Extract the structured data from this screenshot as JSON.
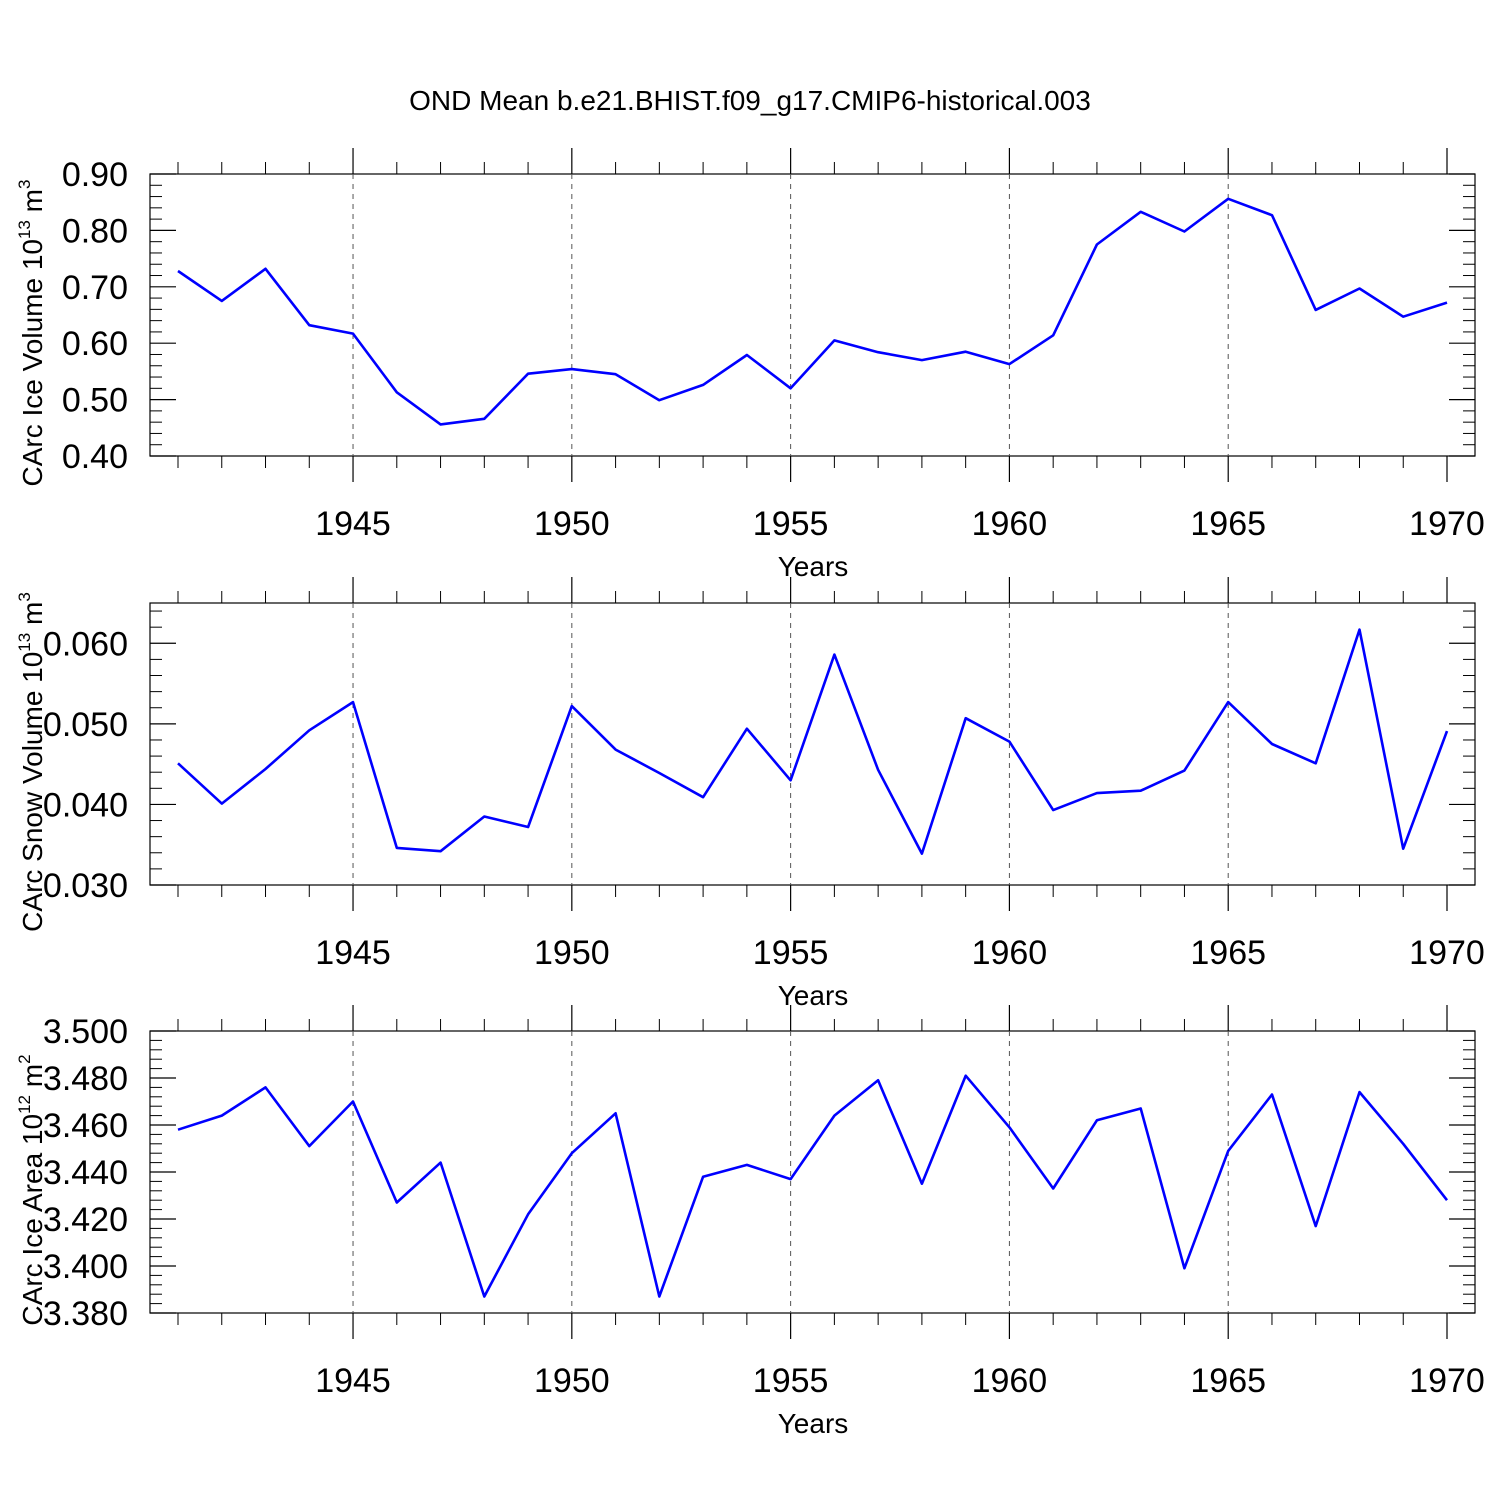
{
  "figure_title": "OND Mean b.e21.BHIST.f09_g17.CMIP6-historical.003",
  "colors": {
    "line": "#0000ff",
    "axes": "#000000",
    "grid": "#555555"
  },
  "chart_data": [
    {
      "type": "line",
      "ylabel_text": "CArc Ice Volume 10",
      "ylabel_exp": "13",
      "ylabel_unit": " m",
      "ylabel_unit_exp": "3",
      "xlabel": "Years",
      "xlim": [
        1941,
        1970
      ],
      "ylim": [
        0.4,
        0.9
      ],
      "y_ticks": [
        "0.40",
        "0.50",
        "0.60",
        "0.70",
        "0.80",
        "0.90"
      ],
      "y_tick_values": [
        0.4,
        0.5,
        0.6,
        0.7,
        0.8,
        0.9
      ],
      "y_minor_step": 0.02,
      "x_ticks": [
        "1945",
        "1950",
        "1955",
        "1960",
        "1965",
        "1970"
      ],
      "x_tick_values": [
        1945,
        1950,
        1955,
        1960,
        1965,
        1970
      ],
      "x": [
        1941,
        1942,
        1943,
        1944,
        1945,
        1946,
        1947,
        1948,
        1949,
        1950,
        1951,
        1952,
        1953,
        1954,
        1955,
        1956,
        1957,
        1958,
        1959,
        1960,
        1961,
        1962,
        1963,
        1964,
        1965,
        1966,
        1967,
        1968,
        1969,
        1970
      ],
      "values": [
        0.728,
        0.675,
        0.732,
        0.632,
        0.617,
        0.513,
        0.456,
        0.466,
        0.546,
        0.554,
        0.545,
        0.499,
        0.526,
        0.579,
        0.52,
        0.605,
        0.584,
        0.57,
        0.585,
        0.563,
        0.614,
        0.775,
        0.833,
        0.798,
        0.856,
        0.827,
        0.659,
        0.697,
        0.647,
        0.672
      ]
    },
    {
      "type": "line",
      "ylabel_text": "CArc Snow Volume 10",
      "ylabel_exp": "13",
      "ylabel_unit": " m",
      "ylabel_unit_exp": "3",
      "xlabel": "Years",
      "xlim": [
        1941,
        1970
      ],
      "ylim": [
        0.03,
        0.065
      ],
      "y_ticks": [
        "0.030",
        "0.040",
        "0.050",
        "0.060"
      ],
      "y_tick_values": [
        0.03,
        0.04,
        0.05,
        0.06
      ],
      "y_minor_step": 0.002,
      "x_ticks": [
        "1945",
        "1950",
        "1955",
        "1960",
        "1965",
        "1970"
      ],
      "x_tick_values": [
        1945,
        1950,
        1955,
        1960,
        1965,
        1970
      ],
      "x": [
        1941,
        1942,
        1943,
        1944,
        1945,
        1946,
        1947,
        1948,
        1949,
        1950,
        1951,
        1952,
        1953,
        1954,
        1955,
        1956,
        1957,
        1958,
        1959,
        1960,
        1961,
        1962,
        1963,
        1964,
        1965,
        1966,
        1967,
        1968,
        1969,
        1970
      ],
      "values": [
        0.0451,
        0.0401,
        0.0444,
        0.0492,
        0.0527,
        0.0346,
        0.0342,
        0.0385,
        0.0372,
        0.0522,
        0.0468,
        0.0439,
        0.0409,
        0.0494,
        0.043,
        0.0586,
        0.0443,
        0.0339,
        0.0507,
        0.0478,
        0.0393,
        0.0414,
        0.0417,
        0.0442,
        0.0527,
        0.0475,
        0.0451,
        0.0617,
        0.0345,
        0.0491
      ]
    },
    {
      "type": "line",
      "ylabel_text": "CArc Ice Area 10",
      "ylabel_exp": "12",
      "ylabel_unit": " m",
      "ylabel_unit_exp": "2",
      "xlabel": "Years",
      "xlim": [
        1941,
        1970
      ],
      "ylim": [
        3.38,
        3.5
      ],
      "y_ticks": [
        "3.380",
        "3.400",
        "3.420",
        "3.440",
        "3.460",
        "3.480",
        "3.500"
      ],
      "y_tick_values": [
        3.38,
        3.4,
        3.42,
        3.44,
        3.46,
        3.48,
        3.5
      ],
      "y_minor_step": 0.004,
      "x_ticks": [
        "1945",
        "1950",
        "1955",
        "1960",
        "1965",
        "1970"
      ],
      "x_tick_values": [
        1945,
        1950,
        1955,
        1960,
        1965,
        1970
      ],
      "x": [
        1941,
        1942,
        1943,
        1944,
        1945,
        1946,
        1947,
        1948,
        1949,
        1950,
        1951,
        1952,
        1953,
        1954,
        1955,
        1956,
        1957,
        1958,
        1959,
        1960,
        1961,
        1962,
        1963,
        1964,
        1965,
        1966,
        1967,
        1968,
        1969,
        1970
      ],
      "values": [
        3.458,
        3.464,
        3.476,
        3.451,
        3.47,
        3.427,
        3.444,
        3.387,
        3.422,
        3.448,
        3.465,
        3.387,
        3.438,
        3.443,
        3.437,
        3.464,
        3.479,
        3.435,
        3.481,
        3.459,
        3.433,
        3.462,
        3.467,
        3.399,
        3.449,
        3.473,
        3.417,
        3.474,
        3.452,
        3.428
      ]
    }
  ]
}
